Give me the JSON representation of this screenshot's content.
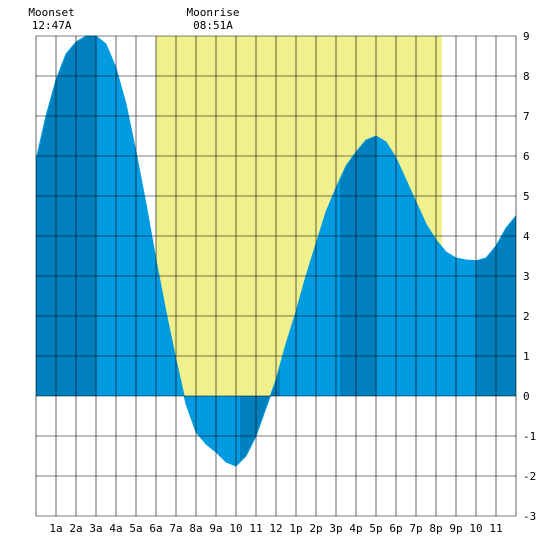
{
  "chart_data": {
    "type": "area",
    "title": "",
    "xlabel": "",
    "ylabel": "",
    "x_unit": "hour",
    "xlim": [
      0,
      24
    ],
    "ylim": [
      -3,
      9
    ],
    "y_ticks": [
      9,
      8,
      7,
      6,
      5,
      4,
      3,
      2,
      1,
      0,
      -1,
      -2,
      -3
    ],
    "x_tick_labels": [
      "1a",
      "2a",
      "3a",
      "4a",
      "5a",
      "6a",
      "7a",
      "8a",
      "9a",
      "10",
      "11",
      "12",
      "1p",
      "2p",
      "3p",
      "4p",
      "5p",
      "6p",
      "7p",
      "8p",
      "9p",
      "10",
      "11"
    ],
    "grid": true,
    "daylight": {
      "start": 6.0,
      "end": 20.3,
      "color": "#f0f08c"
    },
    "colors": {
      "water": "#009be0",
      "water_dark": "#0080bf",
      "grid": "#000000"
    },
    "moon_events": [
      {
        "label": "Moonset",
        "time": "12:47A",
        "x": 0.78
      },
      {
        "label": "Moonrise",
        "time": "08:51A",
        "x": 8.85
      }
    ],
    "tide_extremes": [
      {
        "time": 3.0,
        "height": 9.0,
        "type": "high"
      },
      {
        "time": 10.2,
        "height": -1.75,
        "type": "low"
      },
      {
        "time": 17.0,
        "height": 6.5,
        "type": "high"
      },
      {
        "time": 22.2,
        "height": 3.4,
        "type": "low"
      }
    ],
    "series": [
      {
        "values": [
          [
            0,
            5.9
          ],
          [
            0.5,
            7.0
          ],
          [
            1,
            7.9
          ],
          [
            1.5,
            8.55
          ],
          [
            2,
            8.85
          ],
          [
            2.5,
            9.0
          ],
          [
            3,
            9.0
          ],
          [
            3.5,
            8.8
          ],
          [
            4,
            8.2
          ],
          [
            4.5,
            7.3
          ],
          [
            5,
            6.1
          ],
          [
            5.5,
            4.8
          ],
          [
            6,
            3.4
          ],
          [
            6.5,
            2.1
          ],
          [
            7,
            0.9
          ],
          [
            7.5,
            -0.2
          ],
          [
            8,
            -0.9
          ],
          [
            8.5,
            -1.2
          ],
          [
            9,
            -1.4
          ],
          [
            9.5,
            -1.65
          ],
          [
            10,
            -1.75
          ],
          [
            10.5,
            -1.5
          ],
          [
            11,
            -1.0
          ],
          [
            11.5,
            -0.3
          ],
          [
            12,
            0.4
          ],
          [
            12.5,
            1.3
          ],
          [
            13,
            2.1
          ],
          [
            13.5,
            3.0
          ],
          [
            14,
            3.8
          ],
          [
            14.5,
            4.6
          ],
          [
            15,
            5.2
          ],
          [
            15.5,
            5.75
          ],
          [
            16,
            6.1
          ],
          [
            16.5,
            6.4
          ],
          [
            17,
            6.5
          ],
          [
            17.5,
            6.35
          ],
          [
            18,
            5.95
          ],
          [
            18.5,
            5.4
          ],
          [
            19,
            4.85
          ],
          [
            19.5,
            4.3
          ],
          [
            20,
            3.9
          ],
          [
            20.5,
            3.6
          ],
          [
            21,
            3.45
          ],
          [
            21.5,
            3.4
          ],
          [
            22,
            3.38
          ],
          [
            22.5,
            3.45
          ],
          [
            23,
            3.75
          ],
          [
            23.5,
            4.2
          ],
          [
            24,
            4.5
          ]
        ]
      }
    ]
  }
}
